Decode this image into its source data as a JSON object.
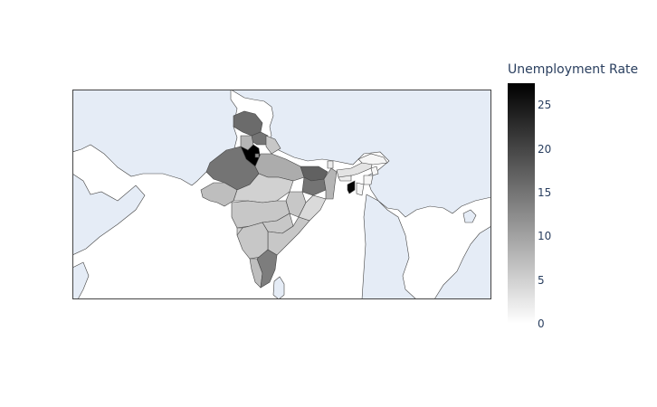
{
  "colorbar": {
    "title": "Unemployment Rate",
    "max_value": 27.5,
    "ticks": [
      {
        "value": 25,
        "label": "25"
      },
      {
        "value": 20,
        "label": "20"
      },
      {
        "value": 15,
        "label": "15"
      },
      {
        "value": 10,
        "label": "10"
      },
      {
        "value": 5,
        "label": "5"
      },
      {
        "value": 0,
        "label": "0"
      }
    ],
    "colorscale": [
      "#ffffff",
      "#000000"
    ]
  },
  "map": {
    "ocean_color": "#ffffff",
    "land_color": "#e5ecf6",
    "frame_color": "#444444"
  },
  "chart_data": {
    "type": "heatmap",
    "title": "",
    "colorbar_title": "Unemployment Rate",
    "range": [
      0,
      27.5
    ],
    "regions": [
      {
        "name": "Haryana",
        "value": 27.5
      },
      {
        "name": "Tripura",
        "value": 27
      },
      {
        "name": "Jammu & Kashmir",
        "value": 16
      },
      {
        "name": "Himachal Pradesh",
        "value": 15
      },
      {
        "name": "Rajasthan",
        "value": 15
      },
      {
        "name": "Bihar",
        "value": 17
      },
      {
        "name": "Jharkhand",
        "value": 15
      },
      {
        "name": "Uttarakhand",
        "value": 6
      },
      {
        "name": "Uttar Pradesh",
        "value": 9
      },
      {
        "name": "Punjab",
        "value": 8
      },
      {
        "name": "Gujarat",
        "value": 7
      },
      {
        "name": "Madhya Pradesh",
        "value": 5
      },
      {
        "name": "Maharashtra",
        "value": 6
      },
      {
        "name": "Chhattisgarh",
        "value": 6
      },
      {
        "name": "Odisha",
        "value": 4
      },
      {
        "name": "West Bengal",
        "value": 8
      },
      {
        "name": "Telangana",
        "value": 6
      },
      {
        "name": "Andhra Pradesh",
        "value": 6
      },
      {
        "name": "Karnataka",
        "value": 6
      },
      {
        "name": "Goa",
        "value": 5
      },
      {
        "name": "Kerala",
        "value": 7
      },
      {
        "name": "Tamil Nadu",
        "value": 14
      },
      {
        "name": "Assam",
        "value": 3
      },
      {
        "name": "Meghalaya",
        "value": 2
      },
      {
        "name": "Sikkim",
        "value": 2
      },
      {
        "name": "Arunachal Pradesh",
        "value": 1
      },
      {
        "name": "Nagaland",
        "value": 1
      },
      {
        "name": "Manipur",
        "value": 1
      },
      {
        "name": "Mizoram",
        "value": 1
      },
      {
        "name": "Delhi",
        "value": 12
      }
    ]
  }
}
